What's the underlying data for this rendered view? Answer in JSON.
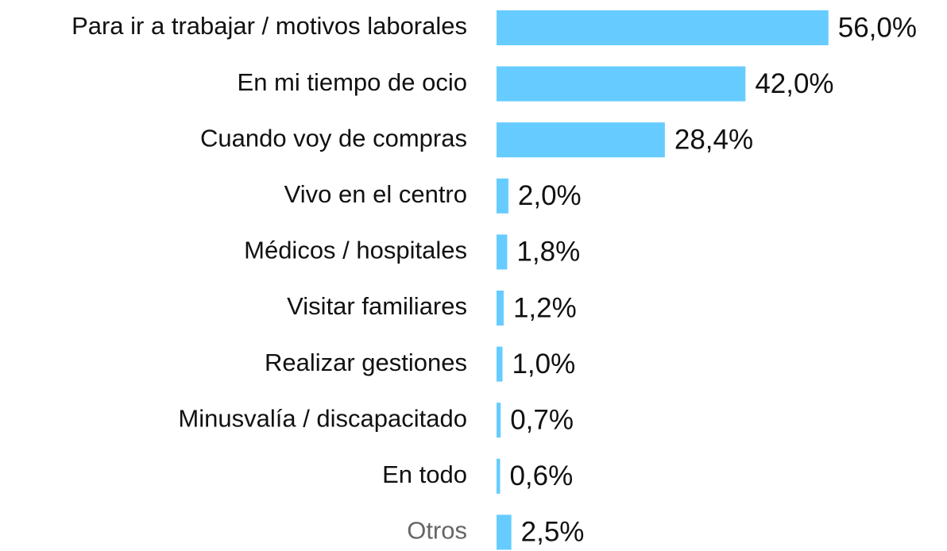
{
  "chart_data": {
    "type": "bar",
    "orientation": "horizontal",
    "color": "#66ccff",
    "categories": [
      "Para ir a trabajar / motivos laborales",
      "En mi tiempo de ocio",
      "Cuando voy de compras",
      "Vivo en el centro",
      "Médicos / hospitales",
      "Visitar familiares",
      "Realizar gestiones",
      "Minusvalía / discapacitado",
      "En todo",
      "Otros"
    ],
    "values": [
      56.0,
      42.0,
      28.4,
      2.0,
      1.8,
      1.2,
      1.0,
      0.7,
      0.6,
      2.5
    ],
    "value_labels": [
      "56,0%",
      "42,0%",
      "28,4%",
      "2,0%",
      "1,8%",
      "1,2%",
      "1,0%",
      "0,7%",
      "0,6%",
      "2,5%"
    ]
  }
}
